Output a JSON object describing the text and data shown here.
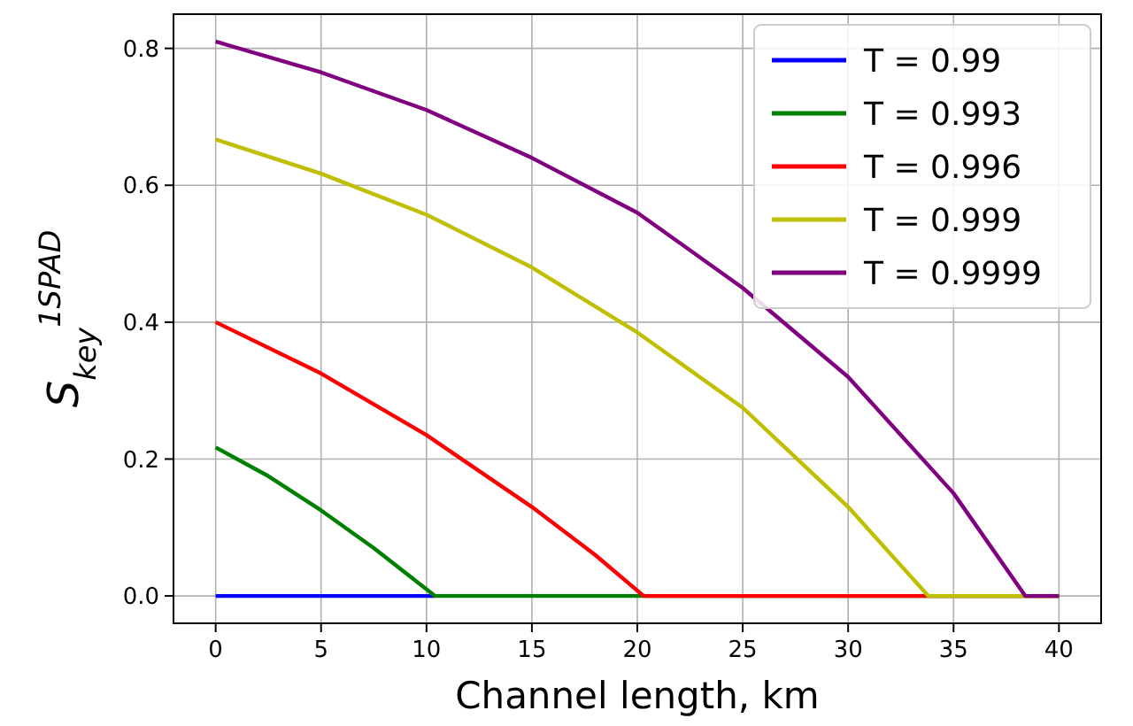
{
  "chart_data": {
    "type": "line",
    "xlabel": "Channel length, km",
    "ylabel": "S$_{key}$$^{1SPAD}$",
    "xlim": [
      -2,
      42
    ],
    "ylim": [
      -0.04,
      0.85
    ],
    "xticks": [
      0,
      5,
      10,
      15,
      20,
      25,
      30,
      35,
      40
    ],
    "yticks": [
      {
        "value": 0,
        "label": "0.0"
      },
      {
        "value": 0.2,
        "label": "0.2"
      },
      {
        "value": 0.4,
        "label": "0.4"
      },
      {
        "value": 0.6,
        "label": "0.6"
      },
      {
        "value": 0.8,
        "label": "0.8"
      }
    ],
    "grid": true,
    "legend": "top right",
    "marker": "none",
    "line_style": "solid",
    "series": [
      {
        "name": "T = 0.99",
        "color": "#0000ff",
        "x": [
          0,
          10.4
        ],
        "values": [
          0,
          0
        ]
      },
      {
        "name": "T = 0.993",
        "color": "#008000",
        "x": [
          0,
          2.5,
          5,
          7.5,
          10.4,
          40
        ],
        "values": [
          0.217,
          0.175,
          0.125,
          0.07,
          0,
          0
        ]
      },
      {
        "name": "T = 0.996",
        "color": "#ff0000",
        "x": [
          0,
          5,
          10,
          15,
          18,
          20.3,
          40
        ],
        "values": [
          0.4,
          0.325,
          0.235,
          0.13,
          0.06,
          0,
          0
        ]
      },
      {
        "name": "T = 0.999",
        "color": "#bfbf00",
        "x": [
          0,
          5,
          10,
          15,
          20,
          25,
          30,
          33.8,
          40
        ],
        "values": [
          0.667,
          0.617,
          0.557,
          0.48,
          0.385,
          0.275,
          0.13,
          0,
          0
        ]
      },
      {
        "name": "T = 0.9999",
        "color": "#800080",
        "x": [
          0,
          5,
          10,
          15,
          20,
          25,
          30,
          35,
          38.4,
          40
        ],
        "values": [
          0.81,
          0.765,
          0.71,
          0.64,
          0.56,
          0.45,
          0.32,
          0.15,
          0,
          0
        ]
      }
    ]
  }
}
